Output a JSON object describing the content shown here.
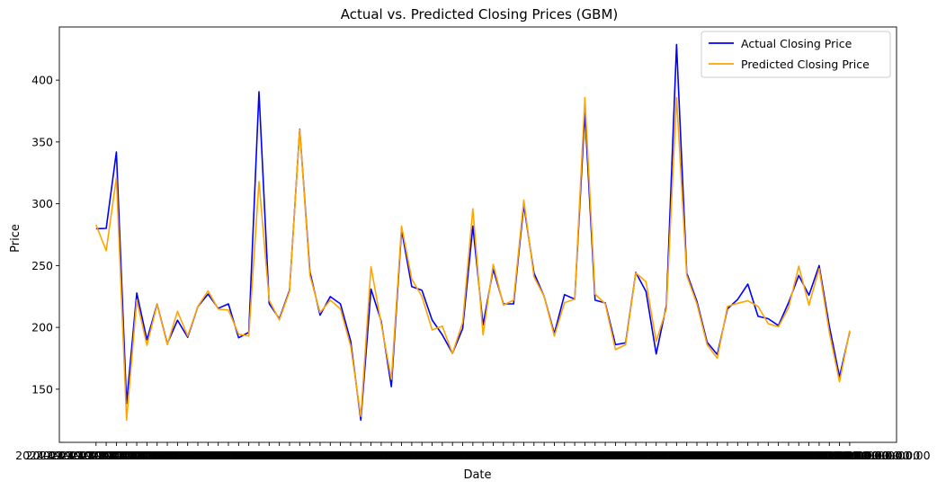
{
  "chart_data": {
    "type": "line",
    "title": "Actual vs. Predicted Closing Prices (GBM)",
    "xlabel": "Date",
    "ylabel": "Price",
    "xlim": [
      -3.6,
      78.6
    ],
    "ylim": [
      107,
      443
    ],
    "y_ticks": [
      150,
      200,
      250,
      300,
      350,
      400
    ],
    "x_tick_label_text": "2024-09-30 00:00:00+00:00",
    "grid": false,
    "legend_position": "top-right",
    "series": [
      {
        "name": "Actual Closing Price",
        "color": "#0000ff",
        "values": [
          279.8,
          280.1,
          341.9,
          138.5,
          227.8,
          189.9,
          218.8,
          186.8,
          205.8,
          192.0,
          216.8,
          226.9,
          215.4,
          219.0,
          191.6,
          196.0,
          390.6,
          219.2,
          207.0,
          230.0,
          360.3,
          245.0,
          209.9,
          224.9,
          219.0,
          189.0,
          125.0,
          231.0,
          205.0,
          152.0,
          279.0,
          233.0,
          230.0,
          206.0,
          194.0,
          179.0,
          199.0,
          282.0,
          202.0,
          247.0,
          219.0,
          219.0,
          299.0,
          244.0,
          225.0,
          195.0,
          226.5,
          222.8,
          374.0,
          222.0,
          219.8,
          186.0,
          187.5,
          244.5,
          229.0,
          178.5,
          217.5,
          428.8,
          244.0,
          221.0,
          188.0,
          178.0,
          215.0,
          222.6,
          235.0,
          209.0,
          207.0,
          201.5,
          220.0,
          242.0,
          226.0,
          250.0,
          201.0,
          160.0,
          196.5
        ]
      },
      {
        "name": "Predicted Closing Price",
        "color": "#ffa500",
        "values": [
          283.0,
          262.0,
          321.0,
          125.0,
          222.0,
          185.5,
          218.5,
          186.0,
          213.0,
          193.0,
          217.0,
          229.5,
          214.8,
          214.0,
          194.5,
          193.0,
          318.0,
          222.0,
          206.0,
          229.0,
          360.0,
          242.0,
          212.0,
          222.0,
          215.0,
          185.0,
          128.0,
          249.0,
          203.0,
          158.0,
          282.0,
          239.0,
          225.0,
          198.0,
          201.0,
          179.0,
          204.0,
          296.0,
          194.0,
          251.0,
          218.0,
          222.0,
          303.0,
          241.0,
          225.0,
          193.0,
          220.0,
          222.8,
          386.0,
          227.0,
          219.0,
          182.0,
          186.0,
          244.0,
          237.0,
          188.5,
          215.0,
          386.0,
          242.0,
          219.0,
          186.0,
          175.0,
          217.0,
          219.5,
          221.5,
          217.0,
          203.0,
          200.5,
          216.0,
          249.5,
          218.0,
          247.5,
          196.0,
          156.0,
          197.5
        ]
      }
    ]
  }
}
